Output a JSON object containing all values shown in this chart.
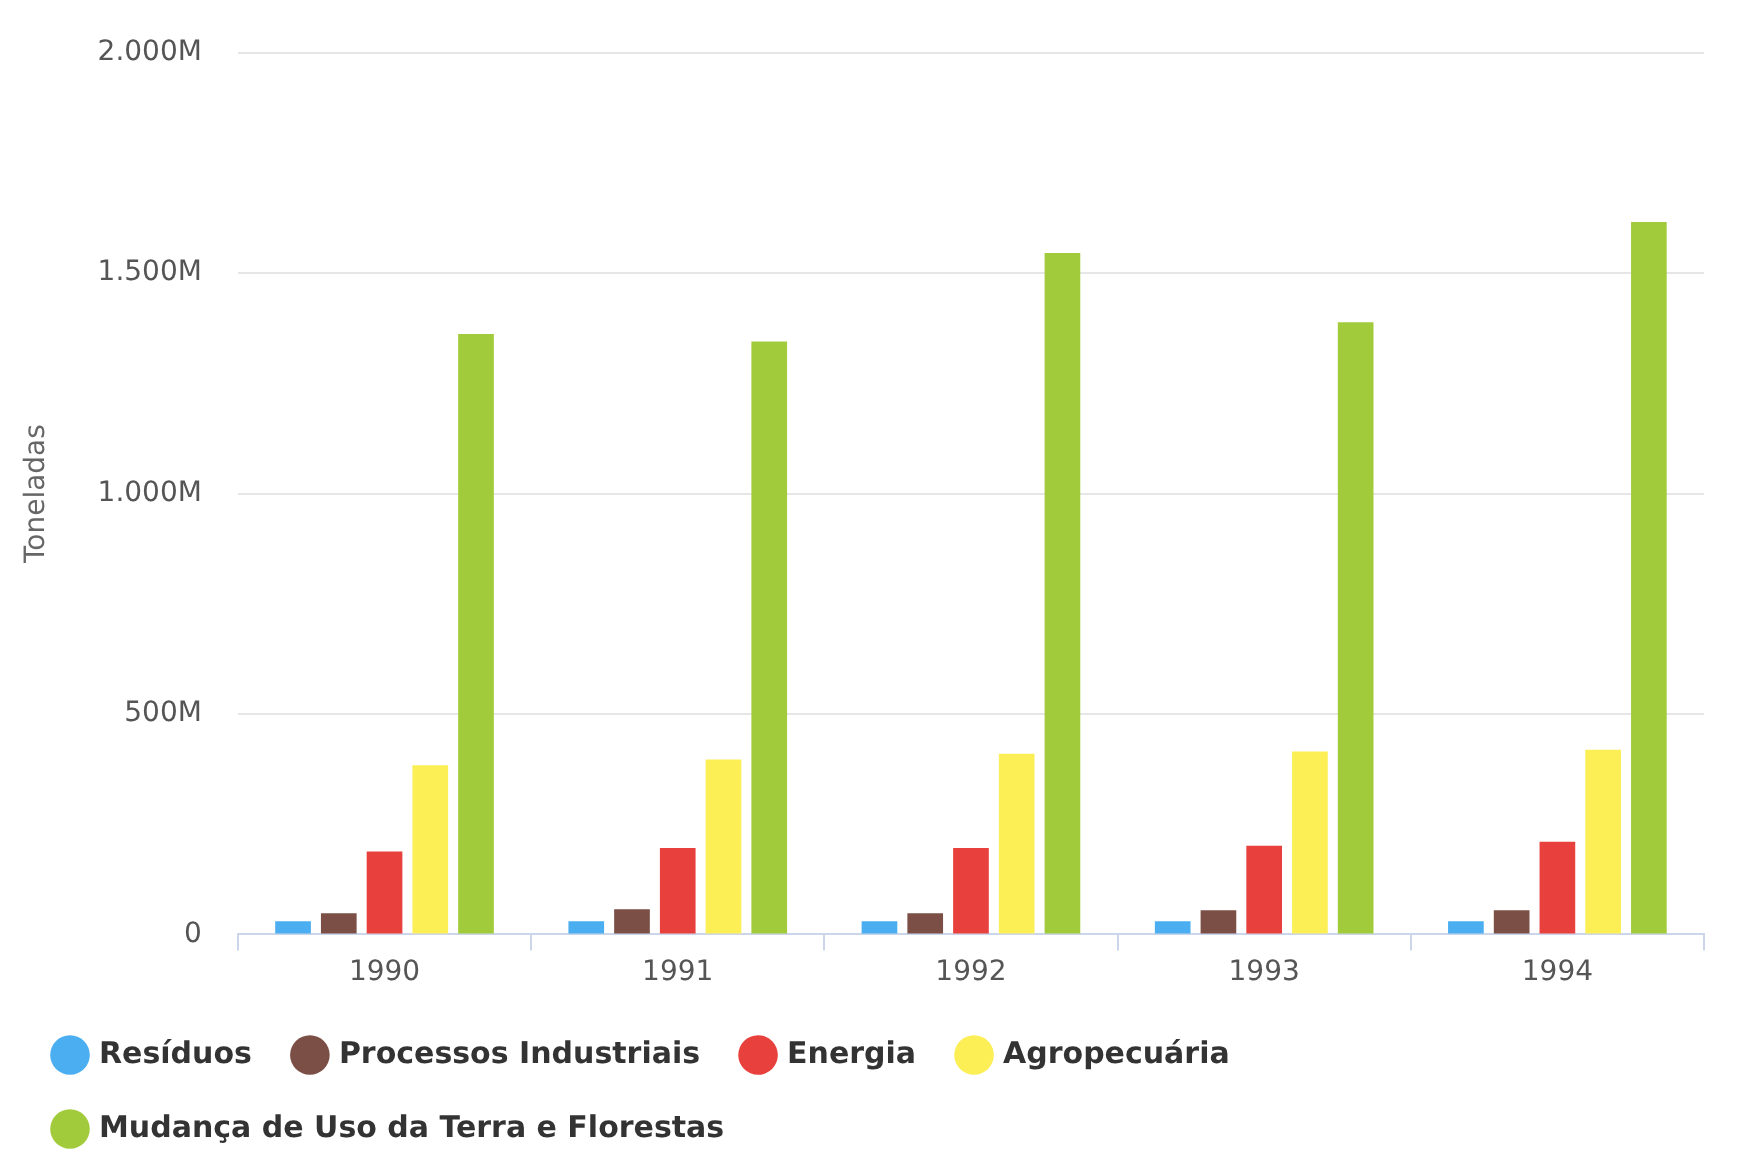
{
  "chart_data": {
    "type": "bar",
    "ylabel": "Toneladas",
    "categories": [
      "1990",
      "1991",
      "1992",
      "1993",
      "1994"
    ],
    "series": [
      {
        "name": "Resíduos",
        "color": "#4aaef0",
        "values": [
          30,
          30,
          30,
          30,
          30
        ]
      },
      {
        "name": "Processos Industriais",
        "color": "#7b4f45",
        "values": [
          48,
          57,
          48,
          55,
          55
        ]
      },
      {
        "name": "Energia",
        "color": "#e8403c",
        "values": [
          188,
          196,
          196,
          201,
          210
        ]
      },
      {
        "name": "Agropecuária",
        "color": "#fbef55",
        "values": [
          384,
          397,
          410,
          415,
          419
        ]
      },
      {
        "name": "Mudança de Uso da Terra e Florestas",
        "color": "#a2cb3c",
        "values": [
          1362,
          1345,
          1546,
          1389,
          1616
        ]
      }
    ],
    "ylim": [
      0,
      2000
    ],
    "yticks": [
      {
        "value": 0,
        "label": "0"
      },
      {
        "value": 500,
        "label": "500M"
      },
      {
        "value": 1000,
        "label": "1.000M"
      },
      {
        "value": 1500,
        "label": "1.500M"
      },
      {
        "value": 2000,
        "label": "2.000M"
      }
    ],
    "grid": "y",
    "legend": "bottom"
  }
}
